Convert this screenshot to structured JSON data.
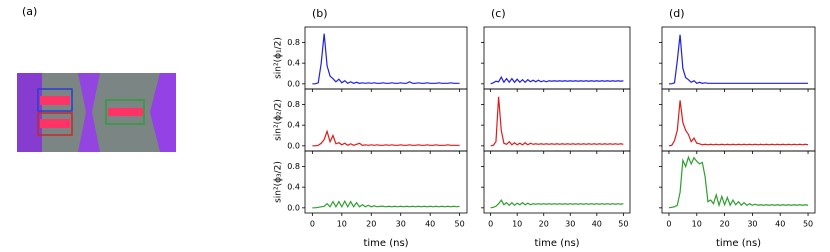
{
  "panel_a": {
    "label": "(a)"
  },
  "chart_data": [
    {
      "type": "line",
      "title": "(b)",
      "xlabel": "time (ns)",
      "xlim": [
        -2.5,
        52.5
      ],
      "xticks": [
        0,
        10,
        20,
        30,
        40,
        50
      ],
      "ylim": [
        -0.1,
        1.1
      ],
      "yticks": [
        {
          "value": 0,
          "label": "0.0"
        },
        {
          "value": 0.4,
          "label": "0.4"
        },
        {
          "value": 0.8,
          "label": "0.8"
        }
      ],
      "show_ytick_labels": true,
      "x": [
        0,
        1,
        2,
        3,
        4,
        5,
        6,
        7,
        8,
        9,
        10,
        11,
        12,
        13,
        14,
        15,
        16,
        17,
        18,
        19,
        20,
        21,
        22,
        23,
        24,
        25,
        26,
        27,
        28,
        29,
        30,
        31,
        32,
        33,
        34,
        35,
        36,
        37,
        38,
        39,
        40,
        41,
        42,
        43,
        44,
        45,
        46,
        47,
        48,
        49,
        50
      ],
      "rows": [
        {
          "ylabel": "sin²(ϕ₁/2)",
          "color": "#1f1fe6",
          "values": [
            0,
            0,
            0.02,
            0.4,
            0.97,
            0.35,
            0.15,
            0.1,
            0.04,
            0.09,
            0.02,
            0.06,
            0.01,
            0.04,
            0.01,
            0.03,
            0.01,
            0.02,
            0.01,
            0.02,
            0.01,
            0.02,
            0.01,
            0.01,
            0.02,
            0.01,
            0.01,
            0.02,
            0.01,
            0.01,
            0.02,
            0.01,
            0.01,
            0.04,
            0.01,
            0.01,
            0.02,
            0.01,
            0.01,
            0.02,
            0.01,
            0.01,
            0.01,
            0.02,
            0.01,
            0.01,
            0.01,
            0.02,
            0.01,
            0.01,
            0.01
          ]
        },
        {
          "ylabel": "sin²(ϕ₂/2)",
          "color": "#e01a1a",
          "values": [
            0,
            0,
            0.01,
            0.05,
            0.12,
            0.28,
            0.08,
            0.2,
            0.04,
            0.06,
            0.02,
            0.05,
            0.01,
            0.04,
            0.01,
            0.03,
            0.05,
            0.01,
            0.02,
            0.01,
            0.02,
            0.01,
            0.02,
            0.01,
            0.01,
            0.02,
            0.01,
            0.02,
            0.01,
            0.01,
            0.02,
            0.01,
            0.01,
            0.02,
            0.01,
            0.01,
            0.02,
            0.01,
            0.01,
            0.02,
            0.01,
            0.01,
            0.02,
            0.01,
            0.01,
            0.01,
            0.02,
            0.01,
            0.01,
            0.01,
            0.01
          ]
        },
        {
          "ylabel": "sin²(ϕ₃/2)",
          "color": "#2ca02c",
          "values": [
            0,
            0,
            0.01,
            0.02,
            0.03,
            0.08,
            0.02,
            0.12,
            0.02,
            0.12,
            0.02,
            0.13,
            0.02,
            0.12,
            0.02,
            0.1,
            0.02,
            0.06,
            0.02,
            0.05,
            0.02,
            0.04,
            0.02,
            0.03,
            0.03,
            0.02,
            0.03,
            0.02,
            0.03,
            0.02,
            0.03,
            0.02,
            0.03,
            0.02,
            0.03,
            0.02,
            0.03,
            0.02,
            0.03,
            0.02,
            0.03,
            0.02,
            0.03,
            0.02,
            0.03,
            0.02,
            0.03,
            0.02,
            0.03,
            0.02,
            0.03
          ]
        }
      ]
    },
    {
      "type": "line",
      "title": "(c)",
      "xlabel": "time (ns)",
      "xlim": [
        -2.5,
        52.5
      ],
      "xticks": [
        0,
        10,
        20,
        30,
        40,
        50
      ],
      "ylim": [
        -0.1,
        1.1
      ],
      "yticks": [
        0,
        0.4,
        0.8
      ],
      "show_ytick_labels": false,
      "x": [
        0,
        1,
        2,
        3,
        4,
        5,
        6,
        7,
        8,
        9,
        10,
        11,
        12,
        13,
        14,
        15,
        16,
        17,
        18,
        19,
        20,
        21,
        22,
        23,
        24,
        25,
        26,
        27,
        28,
        29,
        30,
        31,
        32,
        33,
        34,
        35,
        36,
        37,
        38,
        39,
        40,
        41,
        42,
        43,
        44,
        45,
        46,
        47,
        48,
        49,
        50
      ],
      "rows": [
        {
          "color": "#1f1fe6",
          "values": [
            0,
            0.02,
            0.05,
            0.04,
            0.13,
            0.03,
            0.1,
            0.03,
            0.1,
            0.03,
            0.09,
            0.03,
            0.08,
            0.03,
            0.08,
            0.04,
            0.07,
            0.04,
            0.07,
            0.04,
            0.06,
            0.04,
            0.06,
            0.05,
            0.06,
            0.05,
            0.06,
            0.05,
            0.06,
            0.05,
            0.06,
            0.05,
            0.06,
            0.05,
            0.06,
            0.05,
            0.06,
            0.05,
            0.06,
            0.05,
            0.06,
            0.05,
            0.06,
            0.05,
            0.06,
            0.05,
            0.06,
            0.05,
            0.06,
            0.05,
            0.06
          ]
        },
        {
          "color": "#e01a1a",
          "values": [
            0,
            0.01,
            0.08,
            0.95,
            0.3,
            0.05,
            0.03,
            0.08,
            0.02,
            0.06,
            0.02,
            0.05,
            0.02,
            0.06,
            0.02,
            0.05,
            0.03,
            0.04,
            0.03,
            0.04,
            0.03,
            0.04,
            0.03,
            0.04,
            0.03,
            0.04,
            0.03,
            0.04,
            0.03,
            0.04,
            0.03,
            0.04,
            0.03,
            0.04,
            0.03,
            0.04,
            0.03,
            0.04,
            0.03,
            0.04,
            0.03,
            0.04,
            0.03,
            0.04,
            0.03,
            0.04,
            0.03,
            0.04,
            0.03,
            0.04,
            0.03
          ]
        },
        {
          "color": "#2ca02c",
          "values": [
            0,
            0.01,
            0.03,
            0.08,
            0.15,
            0.06,
            0.1,
            0.05,
            0.1,
            0.05,
            0.09,
            0.06,
            0.1,
            0.06,
            0.09,
            0.06,
            0.08,
            0.07,
            0.08,
            0.07,
            0.08,
            0.07,
            0.08,
            0.07,
            0.08,
            0.07,
            0.08,
            0.07,
            0.08,
            0.07,
            0.08,
            0.07,
            0.08,
            0.07,
            0.08,
            0.07,
            0.08,
            0.07,
            0.08,
            0.07,
            0.08,
            0.07,
            0.08,
            0.07,
            0.08,
            0.07,
            0.08,
            0.07,
            0.08,
            0.07,
            0.08
          ]
        }
      ]
    },
    {
      "type": "line",
      "title": "(d)",
      "xlabel": "time (ns)",
      "xlim": [
        -2.5,
        52.5
      ],
      "xticks": [
        0,
        10,
        20,
        30,
        40,
        50
      ],
      "ylim": [
        -0.1,
        1.1
      ],
      "yticks": [
        0,
        0.4,
        0.8
      ],
      "show_ytick_labels": false,
      "x": [
        0,
        1,
        2,
        3,
        4,
        5,
        6,
        7,
        8,
        9,
        10,
        11,
        12,
        13,
        14,
        15,
        16,
        17,
        18,
        19,
        20,
        21,
        22,
        23,
        24,
        25,
        26,
        27,
        28,
        29,
        30,
        31,
        32,
        33,
        34,
        35,
        36,
        37,
        38,
        39,
        40,
        41,
        42,
        43,
        44,
        45,
        46,
        47,
        48,
        49,
        50
      ],
      "rows": [
        {
          "color": "#1f1fe6",
          "values": [
            0,
            0,
            0.02,
            0.45,
            0.95,
            0.3,
            0.12,
            0.08,
            0.03,
            0.06,
            0.01,
            0.03,
            0.01,
            0.02,
            0.01,
            0.01,
            0.01,
            0.01,
            0.01,
            0.01,
            0.01,
            0.01,
            0.01,
            0.01,
            0.01,
            0.01,
            0.01,
            0.01,
            0.01,
            0.01,
            0.01,
            0.01,
            0.01,
            0.01,
            0.01,
            0.01,
            0.01,
            0.01,
            0.01,
            0.01,
            0.01,
            0.01,
            0.01,
            0.01,
            0.01,
            0.01,
            0.01,
            0.01,
            0.01,
            0.01,
            0.01
          ]
        },
        {
          "color": "#e01a1a",
          "values": [
            0,
            0.01,
            0.1,
            0.3,
            0.88,
            0.45,
            0.3,
            0.22,
            0.08,
            0.15,
            0.05,
            0.04,
            0.02,
            0.03,
            0.02,
            0.03,
            0.02,
            0.03,
            0.02,
            0.03,
            0.02,
            0.03,
            0.02,
            0.03,
            0.02,
            0.03,
            0.02,
            0.03,
            0.02,
            0.03,
            0.02,
            0.03,
            0.02,
            0.03,
            0.02,
            0.03,
            0.02,
            0.03,
            0.02,
            0.03,
            0.02,
            0.03,
            0.02,
            0.03,
            0.02,
            0.03,
            0.02,
            0.03,
            0.02,
            0.03,
            0.02
          ]
        },
        {
          "color": "#2ca02c",
          "values": [
            0,
            0.01,
            0.02,
            0.05,
            0.3,
            0.92,
            0.8,
            0.98,
            0.85,
            0.97,
            0.9,
            0.85,
            0.88,
            0.6,
            0.12,
            0.15,
            0.08,
            0.25,
            0.05,
            0.22,
            0.06,
            0.2,
            0.05,
            0.15,
            0.06,
            0.12,
            0.05,
            0.1,
            0.05,
            0.08,
            0.05,
            0.07,
            0.05,
            0.06,
            0.05,
            0.06,
            0.05,
            0.06,
            0.05,
            0.06,
            0.05,
            0.06,
            0.05,
            0.06,
            0.05,
            0.06,
            0.05,
            0.06,
            0.05,
            0.06,
            0.05
          ]
        }
      ]
    }
  ]
}
